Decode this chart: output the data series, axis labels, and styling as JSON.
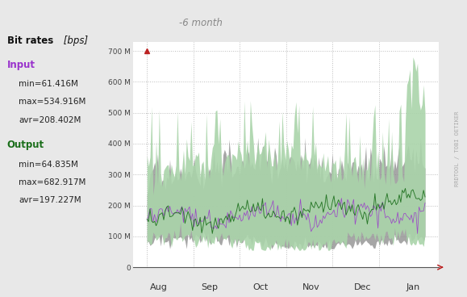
{
  "title": "-6 month",
  "ylabel_right": "RRDTOOL / TOBI OETIKER",
  "legend_title_bold": "Bit rates",
  "legend_title_italic": " [bps]",
  "input_label": "Input",
  "input_min": "min=61.416M",
  "input_max": "max=534.916M",
  "input_avr": "avr=208.402M",
  "output_label": "Output",
  "output_min": "min=64.835M",
  "output_max": "max=682.917M",
  "output_avr": "avr=197.227M",
  "x_labels": [
    "Aug",
    "Sep",
    "Oct",
    "Nov",
    "Dec",
    "Jan"
  ],
  "y_ticks": [
    0,
    100,
    200,
    300,
    400,
    500,
    600,
    700
  ],
  "y_tick_labels": [
    "0",
    "100 M",
    "200 M",
    "300 M",
    "400 M",
    "500 M",
    "600 M",
    "700 M"
  ],
  "ylim": [
    0,
    730
  ],
  "bg_color": "#e8e8e8",
  "plot_bg_color": "#ffffff",
  "input_fill_color": "#aad4aa",
  "input_line_color": "#9932CC",
  "output_fill_color": "#888888",
  "output_line_color": "#1a6e1a",
  "grid_color": "#bbbbbb",
  "n_points": 184
}
